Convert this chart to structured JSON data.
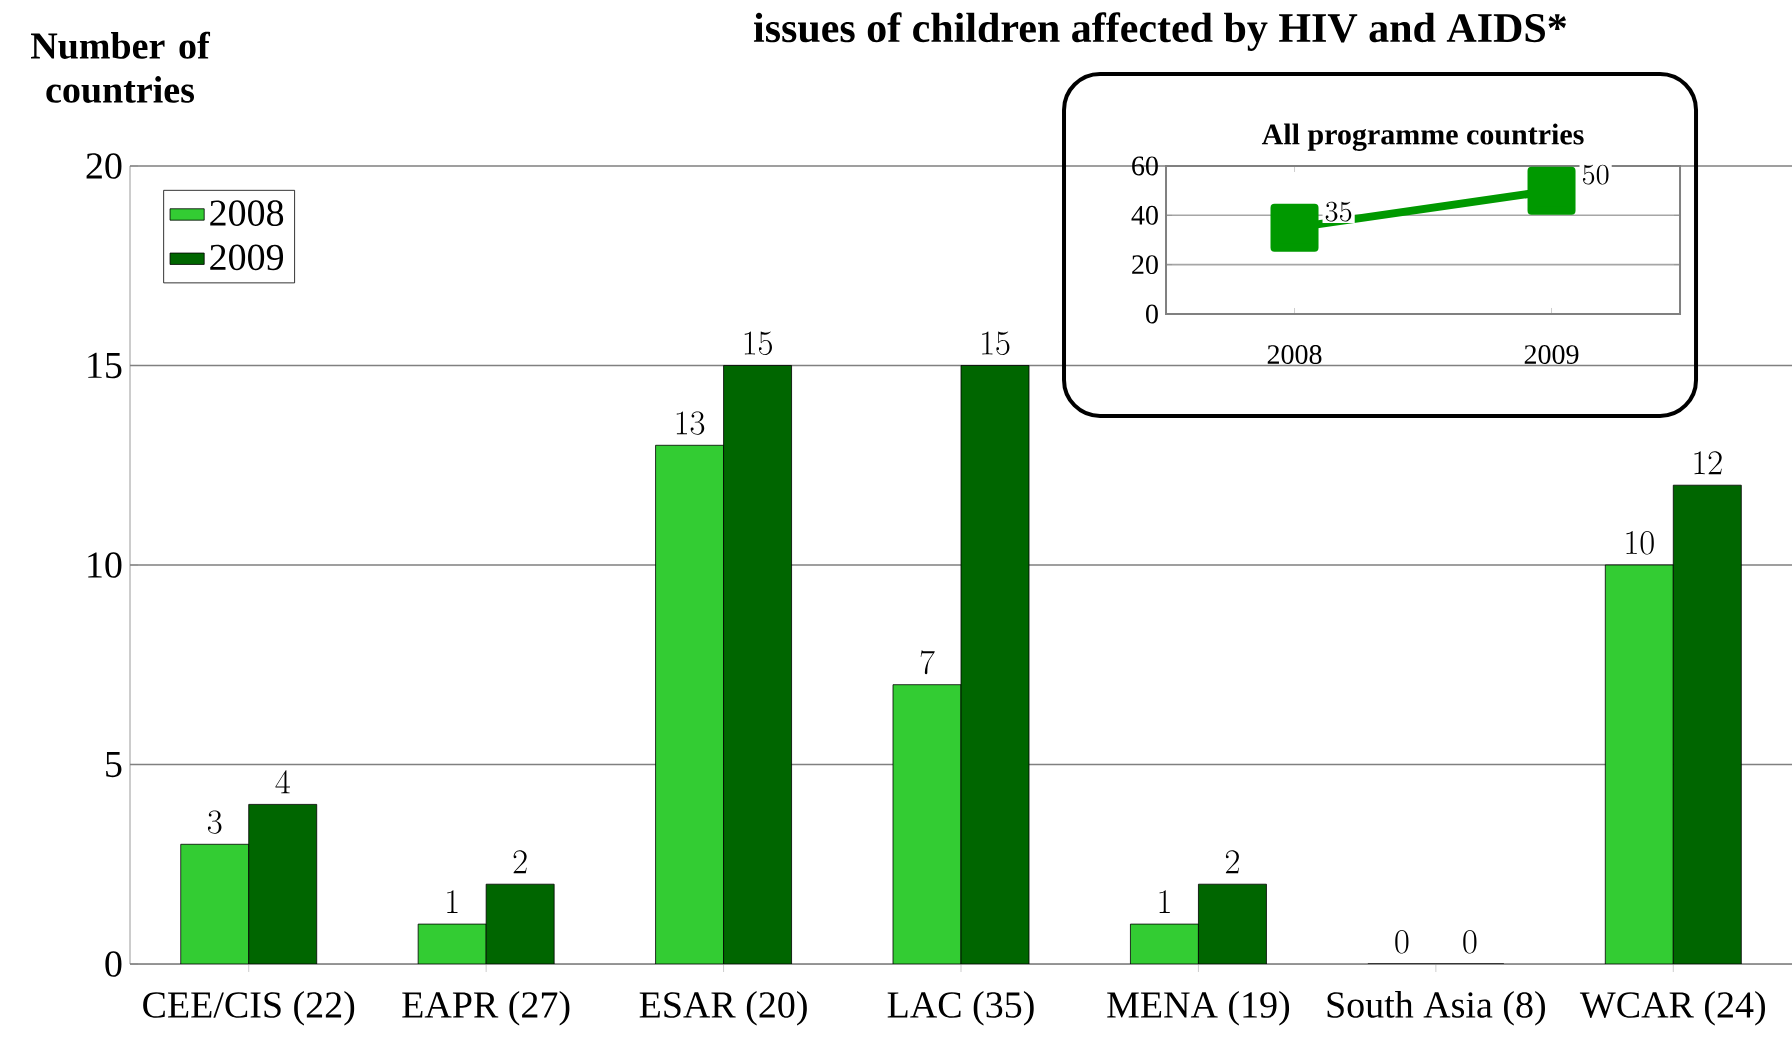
{
  "chart_data": [
    {
      "type": "bar",
      "title": "issues of children affected by HIV and AIDS*",
      "ylabel": "Number of countries",
      "categories": [
        "CEE/CIS (22)",
        "EAPR (27)",
        "ESAR (20)",
        "LAC (35)",
        "MENA (19)",
        "South Asia (8)",
        "WCAR (24)"
      ],
      "series": [
        {
          "name": "2008",
          "color": "#33cc33",
          "values": [
            3,
            1,
            13,
            7,
            1,
            0,
            10
          ]
        },
        {
          "name": "2009",
          "color": "#006600",
          "values": [
            4,
            2,
            15,
            15,
            2,
            0,
            12
          ]
        }
      ],
      "ylim": [
        0,
        20
      ],
      "yticks": [
        0,
        5,
        10,
        15,
        20
      ],
      "grid": "y",
      "legend": "top left",
      "data_labels": true
    },
    {
      "type": "line",
      "title": "All programme countries",
      "categories": [
        "2008",
        "2009"
      ],
      "series": [
        {
          "color": "#009900",
          "values": [
            35,
            50
          ]
        }
      ],
      "ylim": [
        0,
        60
      ],
      "yticks": [
        0,
        20,
        40,
        60
      ],
      "grid": "y",
      "marker": "square",
      "data_labels": true
    }
  ]
}
